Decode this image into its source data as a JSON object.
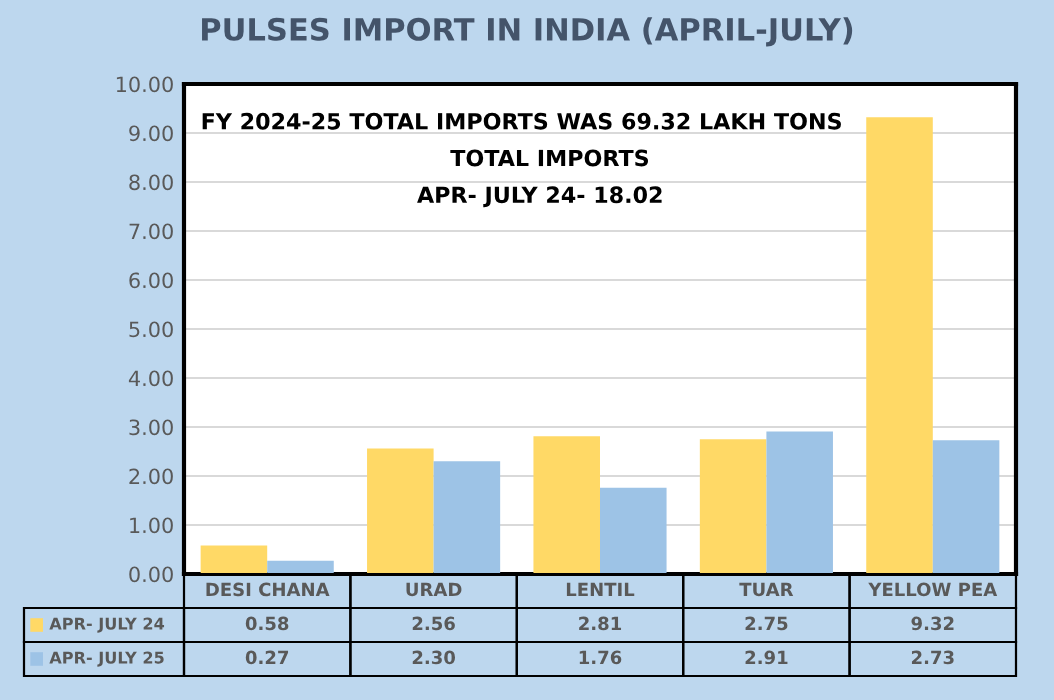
{
  "chart_data": {
    "type": "bar",
    "title": "PULSES IMPORT IN INDIA (APRIL-JULY)",
    "categories": [
      "DESI CHANA",
      "URAD",
      "LENTIL",
      "TUAR",
      "YELLOW PEA"
    ],
    "series": [
      {
        "name": "APR- JULY 24",
        "color": "#ffd966",
        "values": [
          0.58,
          2.56,
          2.81,
          2.75,
          9.32
        ],
        "value_labels": [
          "0.58",
          "2.56",
          "2.81",
          "2.75",
          "9.32"
        ]
      },
      {
        "name": "APR- JULY 25",
        "color": "#9dc3e6",
        "values": [
          0.27,
          2.3,
          1.76,
          2.91,
          2.73
        ],
        "value_labels": [
          "0.27",
          "2.30",
          "1.76",
          "2.91",
          "2.73"
        ]
      }
    ],
    "ylim": [
      0,
      10
    ],
    "yticks": [
      {
        "value": 0,
        "label": "0.00"
      },
      {
        "value": 1,
        "label": "1.00"
      },
      {
        "value": 2,
        "label": "2.00"
      },
      {
        "value": 3,
        "label": "3.00"
      },
      {
        "value": 4,
        "label": "4.00"
      },
      {
        "value": 5,
        "label": "5.00"
      },
      {
        "value": 6,
        "label": "6.00"
      },
      {
        "value": 7,
        "label": "7.00"
      },
      {
        "value": 8,
        "label": "8.00"
      },
      {
        "value": 9,
        "label": "9.00"
      },
      {
        "value": 10,
        "label": "10.00"
      }
    ],
    "grid": "y",
    "legend": "bottom left",
    "annotations": [
      "FY 2024-25 TOTAL IMPORTS WAS 69.32 LAKH TONS",
      "TOTAL IMPORTS",
      "APR- JULY 24- 18.02"
    ]
  }
}
